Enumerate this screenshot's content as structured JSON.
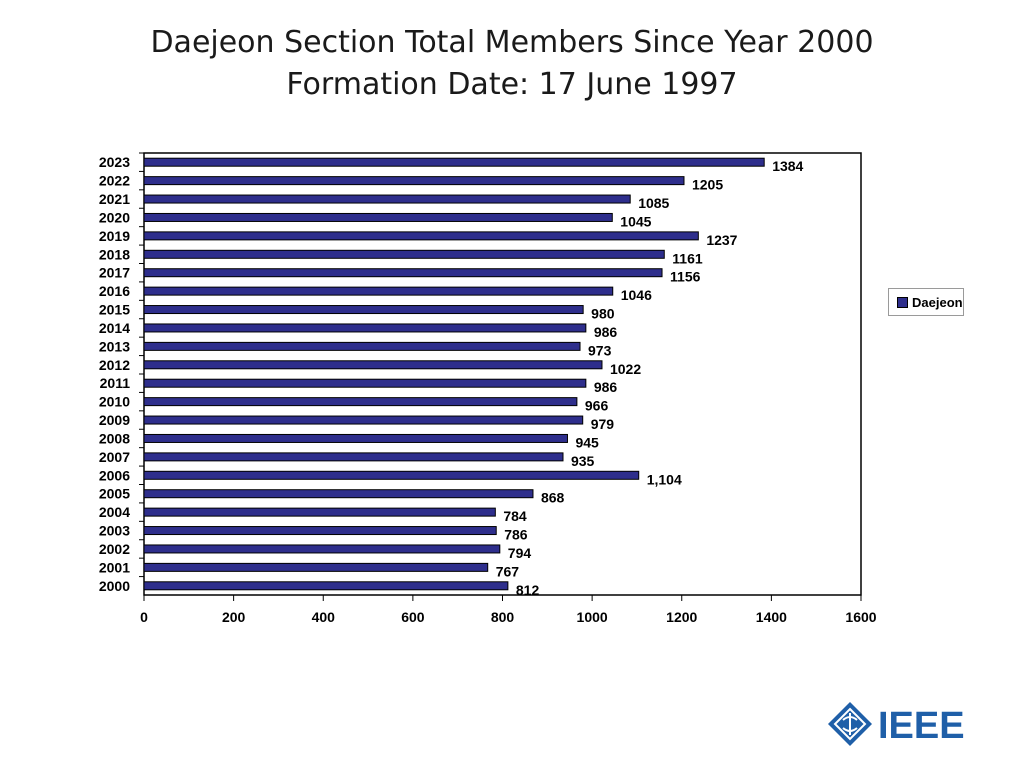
{
  "header": {
    "title": "Daejeon Section Total Members Since Year 2000",
    "subtitle": "Formation Date: 17 June 1997"
  },
  "colors": {
    "bar": "#2e2e8c",
    "logo": "#1f5fa8"
  },
  "logo": {
    "icon": "ieee-diamond-icon",
    "text": "IEEE"
  },
  "chart_data": {
    "type": "bar",
    "orientation": "horizontal",
    "categories": [
      "2023",
      "2022",
      "2021",
      "2020",
      "2019",
      "2018",
      "2017",
      "2016",
      "2015",
      "2014",
      "2013",
      "2012",
      "2011",
      "2010",
      "2009",
      "2008",
      "2007",
      "2006",
      "2005",
      "2004",
      "2003",
      "2002",
      "2001",
      "2000"
    ],
    "series": [
      {
        "name": "Daejeon",
        "values": [
          1384,
          1205,
          1085,
          1045,
          1237,
          1161,
          1156,
          1046,
          980,
          986,
          973,
          1022,
          986,
          966,
          979,
          945,
          935,
          1104,
          868,
          784,
          786,
          794,
          767,
          812
        ],
        "labels": [
          "1384",
          "1205",
          "1085",
          "1045",
          "1237",
          "1161",
          "1156",
          "1046",
          "980",
          "986",
          "973",
          "1022",
          "986",
          "966",
          "979",
          "945",
          "935",
          "1,104",
          "868",
          "784",
          "786",
          "794",
          "767",
          "812"
        ]
      }
    ],
    "xlim": [
      0,
      1600
    ],
    "xticks": [
      "0",
      "200",
      "400",
      "600",
      "800",
      "1000",
      "1200",
      "1400",
      "1600"
    ],
    "grid": false,
    "legend": "right"
  }
}
